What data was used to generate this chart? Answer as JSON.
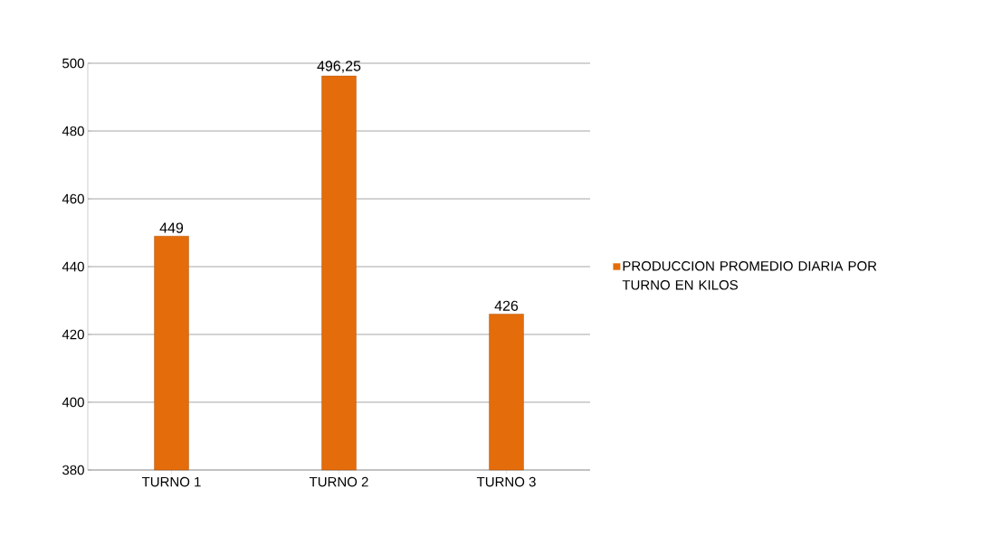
{
  "chart_data": {
    "type": "bar",
    "categories": [
      "TURNO 1",
      "TURNO 2",
      "TURNO 3"
    ],
    "series": [
      {
        "name": "PRODUCCION PROMEDIO DIARIA POR TURNO EN KILOS",
        "color": "#e46c0a",
        "values": [
          449,
          496.25,
          426
        ]
      }
    ],
    "value_labels": [
      "449",
      "496,25",
      "426"
    ],
    "ylim": [
      380,
      500
    ],
    "yticks": [
      380,
      400,
      420,
      440,
      460,
      480,
      500
    ],
    "grid": "y",
    "legend": "right"
  }
}
